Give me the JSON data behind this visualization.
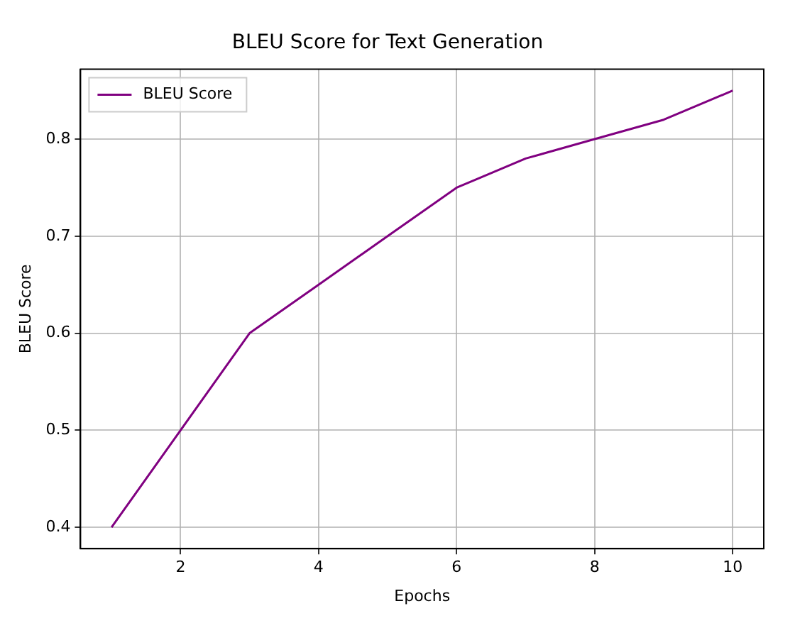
{
  "chart_data": {
    "type": "line",
    "title": "BLEU Score for Text Generation",
    "xlabel": "Epochs",
    "ylabel": "BLEU Score",
    "x": [
      1,
      2,
      3,
      4,
      5,
      6,
      7,
      8,
      9,
      10
    ],
    "series": [
      {
        "name": "BLEU Score",
        "color": "#800080",
        "values": [
          0.4,
          0.5,
          0.6,
          0.65,
          0.7,
          0.75,
          0.78,
          0.8,
          0.82,
          0.85
        ]
      }
    ],
    "xlim": [
      0.55,
      10.45
    ],
    "xticks": [
      2,
      4,
      6,
      8,
      10
    ],
    "ylim": [
      0.378,
      0.872
    ],
    "yticks": [
      0.4,
      0.5,
      0.6,
      0.7,
      0.8
    ],
    "grid": true,
    "legend": "top left",
    "marker": "none",
    "line_style": "solid"
  }
}
